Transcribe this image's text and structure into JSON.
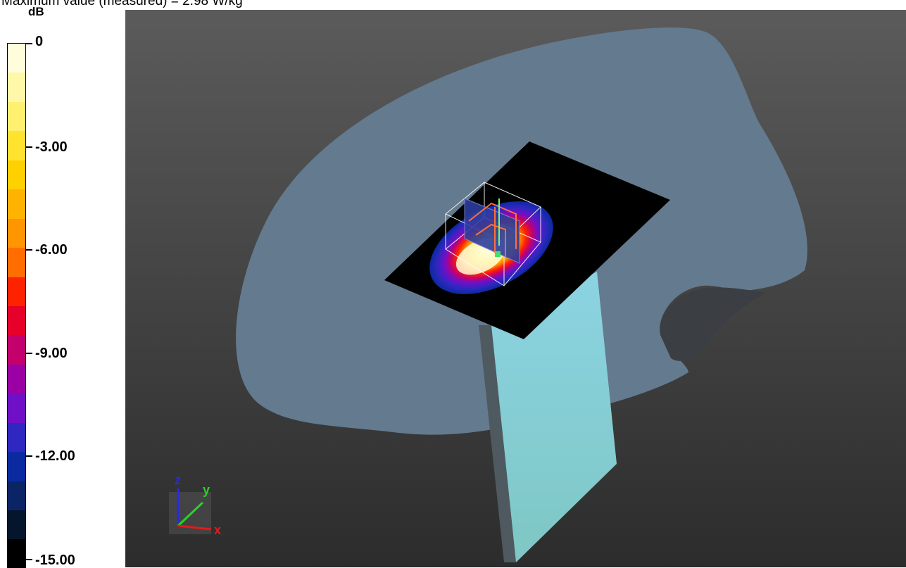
{
  "header": {
    "text": "Maximum value (measured) = 2.98 W/kg"
  },
  "scale": {
    "unit": "dB",
    "labels": [
      "0",
      "-3.00",
      "-6.00",
      "-9.00",
      "-12.00",
      "-15.00"
    ],
    "colors": [
      "#fffddc",
      "#fff8a8",
      "#fff070",
      "#ffe32e",
      "#ffd000",
      "#ffb300",
      "#ff9500",
      "#ff6d00",
      "#ff2200",
      "#e6002a",
      "#c4006c",
      "#9a00a4",
      "#6f10c6",
      "#2f27c0",
      "#0b2aa0",
      "#0a2466",
      "#05162c",
      "#000000"
    ]
  },
  "axes": {
    "x_label": "x",
    "y_label": "y",
    "z_label": "z",
    "x_color": "#e11b1b",
    "y_color": "#2ad12a",
    "z_color": "#2a2ae6"
  },
  "colors": {
    "phantom": "#647a8e",
    "plate": "#000000",
    "phone_front": "#8bd2dc",
    "phone_side": "#5a6a72"
  }
}
